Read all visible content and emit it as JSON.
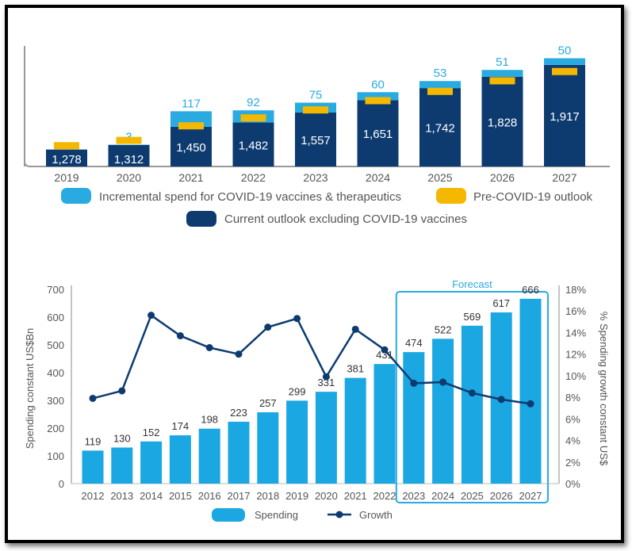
{
  "colors": {
    "incremental": "#29abe2",
    "pre_covid": "#f5b800",
    "current": "#0d3b70",
    "spending": "#1ba7e1",
    "growth": "#0d3b70",
    "axis_text": "#555555",
    "forecast_box": "#29abe2"
  },
  "chart_data": [
    {
      "type": "bar",
      "stacked": true,
      "categories": [
        "2019",
        "2020",
        "2021",
        "2022",
        "2023",
        "2024",
        "2025",
        "2026",
        "2027"
      ],
      "series": [
        {
          "name": "Current outlook excluding COVID-19 vaccines",
          "values": [
            1278,
            1312,
            1450,
            1482,
            1557,
            1651,
            1742,
            1828,
            1917
          ],
          "labels": [
            "1,278",
            "1,312",
            "1,450",
            "1,482",
            "1,557",
            "1,651",
            "1,742",
            "1,828",
            "1,917"
          ]
        },
        {
          "name": "Incremental spend for COVID-19 vaccines & therapeutics",
          "values": [
            0,
            3,
            117,
            92,
            75,
            60,
            53,
            51,
            50
          ],
          "labels": [
            "",
            "3",
            "117",
            "92",
            "75",
            "60",
            "53",
            "51",
            "50"
          ]
        },
        {
          "name": "Pre-COVID-19 outlook",
          "values": [
            1310,
            1350,
            1460,
            1520,
            1580,
            1650,
            1720,
            1800,
            1870
          ]
        }
      ],
      "legend": [
        "Incremental spend for COVID-19 vaccines & therapeutics",
        "Pre-COVID-19 outlook",
        "Current outlook excluding COVID-19 vaccines"
      ],
      "legend_position": "bottom"
    },
    {
      "type": "bar",
      "categories": [
        "2012",
        "2013",
        "2014",
        "2015",
        "2016",
        "2017",
        "2018",
        "2019",
        "2020",
        "2021",
        "2022",
        "2023",
        "2024",
        "2025",
        "2026",
        "2027"
      ],
      "series": [
        {
          "name": "Spending",
          "type": "bar",
          "values": [
            119,
            130,
            152,
            174,
            198,
            223,
            257,
            299,
            331,
            381,
            431,
            474,
            522,
            569,
            617,
            666
          ]
        },
        {
          "name": "Growth",
          "type": "line",
          "axis": "right",
          "values": [
            7.9,
            8.6,
            15.6,
            13.7,
            12.6,
            12.0,
            14.5,
            15.3,
            9.9,
            14.3,
            12.4,
            9.3,
            9.4,
            8.4,
            7.8,
            7.4
          ]
        }
      ],
      "ylabel": "Spending constant US$Bn",
      "ylabel_right": "% Spending growth constant US$",
      "ylim": [
        0,
        700
      ],
      "yticks": [
        "0",
        "100",
        "200",
        "300",
        "400",
        "500",
        "600",
        "700"
      ],
      "ylim_right": [
        0,
        18
      ],
      "yticks_right": [
        "0%",
        "2%",
        "4%",
        "6%",
        "8%",
        "10%",
        "12%",
        "14%",
        "16%",
        "18%"
      ],
      "annotation": "Forecast",
      "forecast_range": [
        "2023",
        "2027"
      ],
      "legend": [
        "Spending",
        "Growth"
      ],
      "legend_position": "bottom"
    }
  ]
}
